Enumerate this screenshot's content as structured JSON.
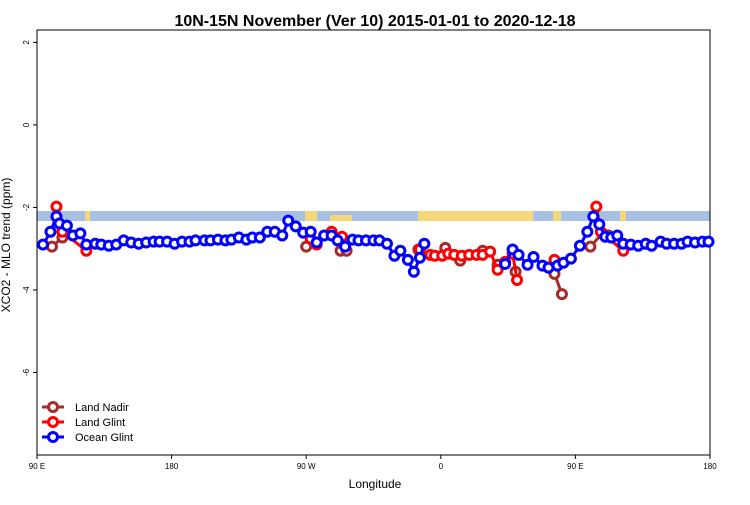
{
  "chart_data": {
    "type": "line",
    "title": "10N-15N November (Ver 10)   2015-01-01 to 2020-12-18",
    "x_label": "Longitude",
    "y_label": "XCO2 - MLO trend (ppm)",
    "xlim": [
      90,
      540
    ],
    "xticks": [
      {
        "value": 90,
        "label": "90 E"
      },
      {
        "value": 180,
        "label": "180"
      },
      {
        "value": 270,
        "label": "90 W"
      },
      {
        "value": 360,
        "label": "0"
      },
      {
        "value": 450,
        "label": "90 E"
      },
      {
        "value": 540,
        "label": "180"
      }
    ],
    "ylim": [
      -8,
      2.3
    ],
    "yticks": [
      -6,
      -4,
      -2,
      0,
      2
    ],
    "legend": "bottom-left",
    "series": [
      {
        "name": "Land Nadir",
        "color": "#a52a2a",
        "x": [
          100,
          107,
          null,
          270,
          null,
          293,
          297,
          null,
          345,
          null,
          363,
          373,
          null,
          388,
          null,
          398,
          null,
          410,
          null,
          436,
          441,
          null,
          460,
          468,
          472
        ],
        "values": [
          -2.95,
          -2.73,
          null,
          -2.95,
          null,
          -3.05,
          -3.05,
          null,
          -3.02,
          null,
          -2.98,
          -3.29,
          null,
          -3.05,
          null,
          -3.39,
          null,
          -3.56,
          null,
          -3.61,
          -4.1,
          null,
          -2.95,
          -2.63,
          -2.68
        ]
      },
      {
        "name": "Land Glint",
        "color": "#ff0000",
        "x": [
          103,
          107,
          123,
          null,
          273,
          277,
          287,
          294,
          296,
          null,
          346,
          353,
          356,
          361,
          365,
          369,
          374,
          379,
          384,
          388,
          393,
          398,
          403,
          408,
          411,
          null,
          436,
          null,
          464,
          467,
          482
        ],
        "values": [
          -1.98,
          -2.59,
          -3.05,
          null,
          -2.76,
          -2.9,
          -2.59,
          -2.71,
          -2.95,
          null,
          -3.02,
          -3.15,
          -3.17,
          -3.17,
          -3.12,
          -3.15,
          -3.17,
          -3.15,
          -3.15,
          -3.15,
          -3.07,
          -3.51,
          -3.32,
          -3.12,
          -3.76,
          null,
          -3.27,
          null,
          -1.98,
          -2.59,
          -3.05
        ]
      },
      {
        "name": "Ocean Glint",
        "color": "#0000ff",
        "x": [
          94,
          99,
          103,
          105,
          110,
          114,
          119,
          123,
          129,
          133,
          138,
          143,
          148,
          153,
          158,
          163,
          168,
          172,
          177,
          182,
          187,
          192,
          196,
          202,
          206,
          211,
          216,
          220,
          225,
          230,
          234,
          239,
          244,
          249,
          254,
          258,
          263,
          268,
          273,
          277,
          282,
          287,
          291,
          296,
          301,
          305,
          310,
          315,
          319,
          324,
          329,
          333,
          338,
          342,
          346,
          349,
          null,
          403,
          408,
          412,
          418,
          422,
          428,
          432,
          438,
          442,
          447,
          453,
          458,
          462,
          466,
          470,
          474,
          478,
          482,
          487,
          492,
          497,
          501,
          507,
          511,
          516,
          521,
          525,
          530,
          535,
          539
        ],
        "values": [
          -2.9,
          -2.59,
          -2.22,
          -2.39,
          -2.44,
          -2.68,
          -2.63,
          -2.9,
          -2.88,
          -2.9,
          -2.93,
          -2.9,
          -2.8,
          -2.85,
          -2.88,
          -2.85,
          -2.83,
          -2.83,
          -2.83,
          -2.88,
          -2.83,
          -2.83,
          -2.8,
          -2.8,
          -2.8,
          -2.78,
          -2.8,
          -2.78,
          -2.73,
          -2.78,
          -2.73,
          -2.73,
          -2.59,
          -2.59,
          -2.68,
          -2.32,
          -2.46,
          -2.61,
          -2.59,
          -2.85,
          -2.68,
          -2.68,
          -2.8,
          -2.95,
          -2.78,
          -2.8,
          -2.8,
          -2.8,
          -2.8,
          -2.88,
          -3.17,
          -3.05,
          -3.27,
          -3.56,
          -3.22,
          -2.88,
          null,
          -3.37,
          -3.02,
          -3.15,
          -3.39,
          -3.2,
          -3.41,
          -3.46,
          -3.41,
          -3.34,
          -3.24,
          -2.93,
          -2.59,
          -2.22,
          -2.41,
          -2.71,
          -2.73,
          -2.68,
          -2.88,
          -2.9,
          -2.93,
          -2.88,
          -2.93,
          -2.83,
          -2.88,
          -2.88,
          -2.88,
          -2.83,
          -2.85,
          -2.83,
          -2.83
        ]
      }
    ]
  }
}
